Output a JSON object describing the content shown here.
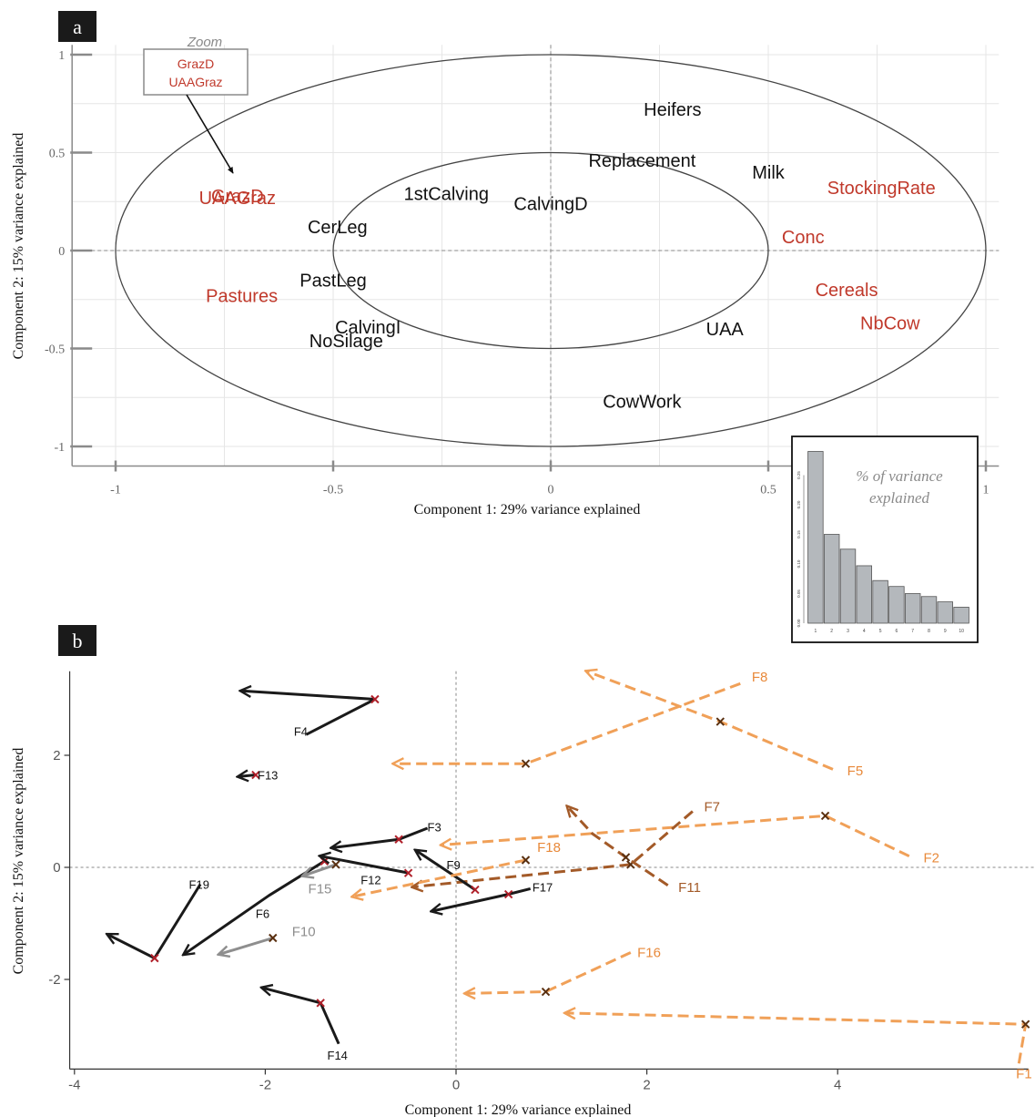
{
  "colors": {
    "black_var": "#111111",
    "red_var": "#c0392b",
    "grid": "#e6e6e6",
    "axis": "#8a8a8a",
    "arrow_black": "#1a1a1a",
    "arrow_orange": "#f0a058",
    "arrow_brown": "#a35a28",
    "arrow_grey": "#8e8e8e",
    "cross_red": "#b0202a",
    "bar_fill": "#b4b8bc",
    "inset_text": "#8a8a8a"
  },
  "chart_data": [
    {
      "type": "scatter",
      "panel_label": "a",
      "xlabel": "Component 1: 29% variance explained",
      "ylabel": "Component 2: 15% variance explained",
      "xlim": [
        -1.1,
        1.03
      ],
      "ylim": [
        -1.1,
        1.05
      ],
      "x_ticks": [
        -1,
        -0.5,
        0,
        0.5,
        1
      ],
      "x_tick_labels": [
        "-1",
        "-0.5",
        "0",
        "0.5",
        "1"
      ],
      "y_ticks": [
        -1,
        -0.5,
        0,
        0.5,
        1
      ],
      "y_tick_labels": [
        "-1",
        "-0.5",
        "0",
        "0.5",
        "1"
      ],
      "grid": true,
      "circles": [
        1.0,
        0.5
      ],
      "variables": [
        {
          "name": "Heifers",
          "x": 0.28,
          "y": 0.72,
          "group": "black"
        },
        {
          "name": "Replacement",
          "x": 0.21,
          "y": 0.46,
          "group": "black"
        },
        {
          "name": "Milk",
          "x": 0.5,
          "y": 0.4,
          "group": "black"
        },
        {
          "name": "StockingRate",
          "x": 0.76,
          "y": 0.32,
          "group": "red"
        },
        {
          "name": "1stCalving",
          "x": -0.24,
          "y": 0.29,
          "group": "black"
        },
        {
          "name": "CalvingD",
          "x": 0.0,
          "y": 0.24,
          "group": "black"
        },
        {
          "name": "GrazD",
          "x": -0.72,
          "y": 0.28,
          "group": "red"
        },
        {
          "name": "UAAGraz",
          "x": -0.72,
          "y": 0.27,
          "group": "red"
        },
        {
          "name": "CerLeg",
          "x": -0.49,
          "y": 0.12,
          "group": "black"
        },
        {
          "name": "Conc",
          "x": 0.58,
          "y": 0.07,
          "group": "red"
        },
        {
          "name": "PastLeg",
          "x": -0.5,
          "y": -0.15,
          "group": "black"
        },
        {
          "name": "Pastures",
          "x": -0.71,
          "y": -0.23,
          "group": "red"
        },
        {
          "name": "Cereals",
          "x": 0.68,
          "y": -0.2,
          "group": "red"
        },
        {
          "name": "CalvingI",
          "x": -0.42,
          "y": -0.39,
          "group": "black"
        },
        {
          "name": "NoSilage",
          "x": -0.47,
          "y": -0.46,
          "group": "black"
        },
        {
          "name": "UAA",
          "x": 0.4,
          "y": -0.4,
          "group": "black"
        },
        {
          "name": "NbCow",
          "x": 0.78,
          "y": -0.37,
          "group": "red"
        },
        {
          "name": "CowWork",
          "x": 0.21,
          "y": -0.77,
          "group": "black"
        }
      ],
      "zoom": {
        "title": "Zoom",
        "items": [
          "GrazD",
          "UAAGraz"
        ],
        "arrow_to": {
          "x": -0.72,
          "y": 0.38
        }
      },
      "inset": {
        "type": "bar",
        "title": "% of variance explained",
        "categories": [
          "1",
          "2",
          "3",
          "4",
          "5",
          "6",
          "7",
          "8",
          "9",
          "10"
        ],
        "values": [
          0.29,
          0.15,
          0.125,
          0.097,
          0.072,
          0.062,
          0.05,
          0.045,
          0.036,
          0.027
        ],
        "y_ticks": [
          0.0,
          0.05,
          0.1,
          0.15,
          0.2,
          0.25
        ],
        "y_tick_labels": [
          "0.00",
          "0.05",
          "0.10",
          "0.15",
          "0.20",
          "0.25"
        ],
        "ylim": [
          0,
          0.3
        ]
      }
    },
    {
      "type": "line",
      "panel_label": "b",
      "xlabel": "Component 1: 29% variance explained",
      "ylabel": "Component 2: 15% variance explained",
      "xlim": [
        -4.05,
        6.0
      ],
      "ylim": [
        -3.6,
        3.5
      ],
      "x_ticks": [
        -4,
        -2,
        0,
        2,
        4
      ],
      "x_tick_labels": [
        "-4",
        "-2",
        "0",
        "2",
        "4"
      ],
      "y_ticks": [
        -2,
        0,
        2
      ],
      "y_tick_labels": [
        "-2",
        "0",
        "2"
      ],
      "trajectories": [
        {
          "farm": "F1",
          "color": "orange",
          "points": [
            [
              5.9,
              -3.5
            ],
            [
              5.97,
              -2.8
            ],
            [
              1.15,
              -2.6
            ]
          ],
          "cross": 1,
          "label_pos": [
            5.87,
            -3.68
          ]
        },
        {
          "farm": "F2",
          "color": "orange",
          "points": [
            [
              4.75,
              0.2
            ],
            [
              3.87,
              0.92
            ],
            [
              -0.15,
              0.4
            ]
          ],
          "cross": 1,
          "label_pos": [
            4.9,
            0.17
          ]
        },
        {
          "farm": "F3",
          "color": "black",
          "points": [
            [
              -0.3,
              0.7
            ],
            [
              -0.6,
              0.5
            ],
            [
              -1.3,
              0.35
            ]
          ],
          "cross": 1,
          "label_pos": [
            -0.3,
            0.72
          ]
        },
        {
          "farm": "F4",
          "color": "black",
          "points": [
            [
              -1.57,
              2.37
            ],
            [
              -0.85,
              3.0
            ],
            [
              -2.25,
              3.15
            ]
          ],
          "cross": 1,
          "label_pos": [
            -1.7,
            2.43
          ]
        },
        {
          "farm": "F5",
          "color": "orange",
          "points": [
            [
              3.95,
              1.75
            ],
            [
              2.77,
              2.6
            ],
            [
              1.37,
              3.5
            ]
          ],
          "cross": 1,
          "label_pos": [
            4.1,
            1.72
          ]
        },
        {
          "farm": "F6",
          "color": "black",
          "points": [
            [
              -1.38,
              0.11
            ],
            [
              -1.96,
              -0.5
            ],
            [
              -2.85,
              -1.55
            ]
          ],
          "cross": 0,
          "label_pos": [
            -2.1,
            -0.82
          ]
        },
        {
          "farm": "F7",
          "color": "brown",
          "points": [
            [
              2.48,
              1.0
            ],
            [
              1.83,
              0.05
            ],
            [
              -0.45,
              -0.35
            ]
          ],
          "cross": 1,
          "label_pos": [
            2.6,
            1.08
          ]
        },
        {
          "farm": "F8",
          "color": "orange",
          "points": [
            [
              2.98,
              3.28
            ],
            [
              0.73,
              1.85
            ],
            [
              -0.65,
              1.85
            ]
          ],
          "cross": 1,
          "label_pos": [
            3.1,
            3.4
          ]
        },
        {
          "farm": "F9",
          "color": "black",
          "points": [
            [
              0.2,
              -0.4
            ],
            [
              -0.42,
              0.3
            ]
          ],
          "cross": 0,
          "label_pos": [
            -0.1,
            0.05
          ]
        },
        {
          "farm": "F10",
          "color": "grey",
          "points": [
            [
              -1.92,
              -1.26
            ],
            [
              -2.48,
              -1.55
            ]
          ],
          "cross": 0,
          "label_pos": [
            -1.72,
            -1.15
          ]
        },
        {
          "farm": "F11",
          "color": "brown",
          "points": [
            [
              2.22,
              -0.32
            ],
            [
              1.78,
              0.18
            ],
            [
              1.43,
              0.6
            ],
            [
              1.17,
              1.08
            ]
          ],
          "cross": 1,
          "label_pos": [
            2.33,
            -0.36
          ]
        },
        {
          "farm": "F12",
          "color": "black",
          "points": [
            [
              -0.5,
              -0.1
            ],
            [
              -1.42,
              0.2
            ]
          ],
          "cross": 0,
          "label_pos": [
            -1.0,
            -0.22
          ]
        },
        {
          "farm": "F13",
          "color": "black",
          "points": [
            [
              -2.1,
              1.65
            ],
            [
              -2.28,
              1.62
            ]
          ],
          "cross": 0,
          "label_pos": [
            -2.08,
            1.65
          ]
        },
        {
          "farm": "F14",
          "color": "black",
          "points": [
            [
              -1.23,
              -3.15
            ],
            [
              -1.42,
              -2.42
            ],
            [
              -2.03,
              -2.15
            ]
          ],
          "cross": 1,
          "label_pos": [
            -1.35,
            -3.35
          ]
        },
        {
          "farm": "F15",
          "color": "grey",
          "points": [
            [
              -1.26,
              0.05
            ],
            [
              -1.6,
              -0.15
            ]
          ],
          "cross": 0,
          "label_pos": [
            -1.55,
            -0.38
          ]
        },
        {
          "farm": "F16",
          "color": "orange",
          "points": [
            [
              1.83,
              -1.52
            ],
            [
              0.94,
              -2.22
            ],
            [
              0.1,
              -2.25
            ]
          ],
          "cross": 1,
          "label_pos": [
            1.9,
            -1.52
          ]
        },
        {
          "farm": "F17",
          "color": "black",
          "points": [
            [
              0.78,
              -0.38
            ],
            [
              0.55,
              -0.48
            ],
            [
              -0.25,
              -0.78
            ]
          ],
          "cross": 1,
          "label_pos": [
            0.8,
            -0.35
          ]
        },
        {
          "farm": "F18",
          "color": "orange",
          "points": [
            [
              0.73,
              0.13
            ],
            [
              -1.08,
              -0.52
            ]
          ],
          "cross": 0,
          "label_pos": [
            0.85,
            0.36
          ]
        },
        {
          "farm": "F19",
          "color": "black",
          "points": [
            [
              -2.68,
              -0.3
            ],
            [
              -3.16,
              -1.62
            ],
            [
              -3.65,
              -1.2
            ]
          ],
          "cross": 1,
          "label_pos": [
            -2.8,
            -0.3
          ]
        }
      ]
    }
  ]
}
